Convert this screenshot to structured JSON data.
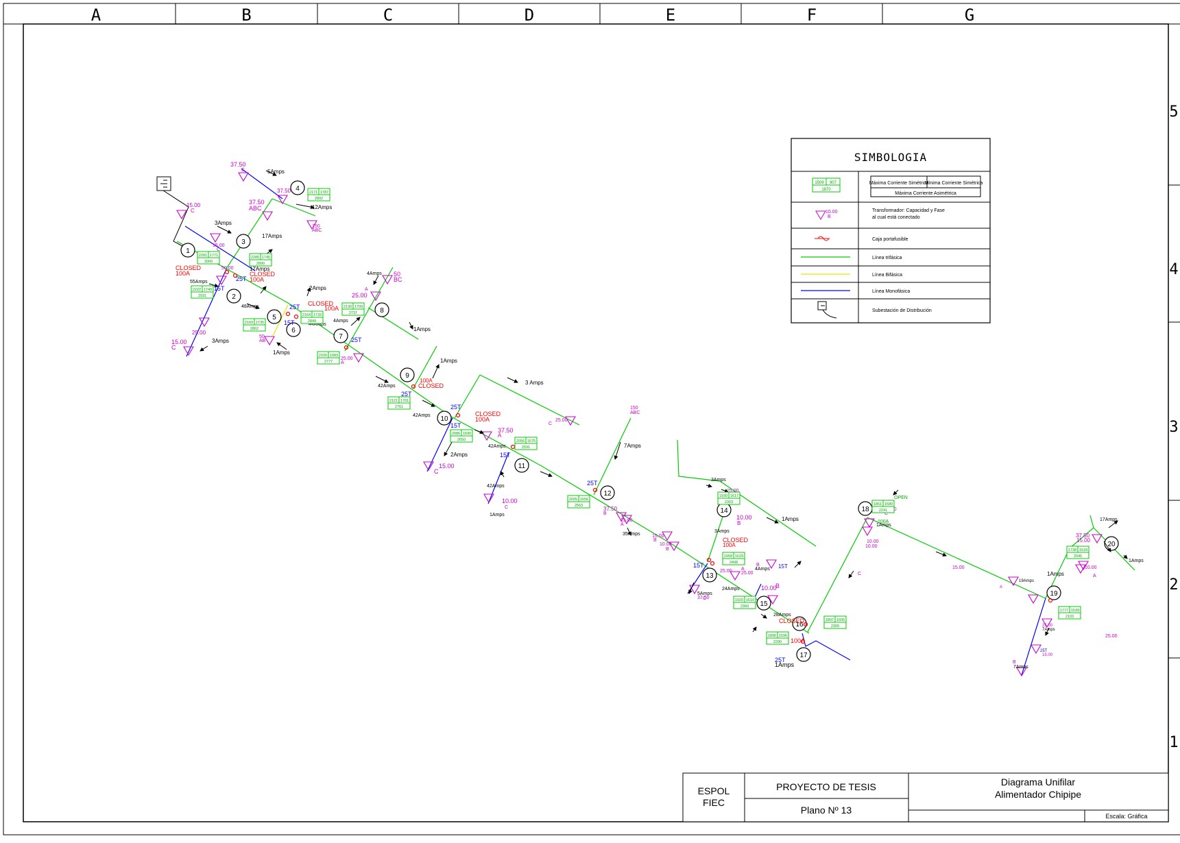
{
  "columns": [
    "A",
    "B",
    "C",
    "D",
    "E",
    "F",
    "G"
  ],
  "rows": [
    "5",
    "4",
    "3",
    "2",
    "1"
  ],
  "legend": {
    "title": "SIMBOLOGIA",
    "sample_box": {
      "a": "1509",
      "b": "907",
      "c": "1870"
    },
    "max_sym": "Máxima Corriente Simétrica",
    "min_sym": "Mínima Corriente Simétrica",
    "max_asym": "Máxima Corriente Asimétrica",
    "xfmr_cap": "10.00",
    "xfmr_phase": "B",
    "xfmr_desc1": "Transformador: Capacidad y Fase",
    "xfmr_desc2": "al cual está conectado",
    "fuse": "Caja portafusible",
    "three": "Línea trifásica",
    "two": "Línea Bifásica",
    "one": "Línea Monofásica",
    "sub": "Subestación de Distribución"
  },
  "colors": {
    "three": "#00cc00",
    "two": "#e6e600",
    "one": "#0000ff",
    "xfmr": "#cc00cc",
    "fuse": "#ff0000",
    "text": "#000000"
  },
  "nodes": [
    "1",
    "2",
    "3",
    "4",
    "5",
    "6",
    "7",
    "8",
    "9",
    "10",
    "11",
    "12",
    "13",
    "14",
    "15",
    "16",
    "17",
    "18",
    "19",
    "20"
  ],
  "labels": [
    {
      "t": "37.50",
      "c": "#cc00cc"
    },
    {
      "t": "C",
      "c": "#cc00cc"
    },
    {
      "t": "5Amps",
      "c": "#000"
    },
    {
      "t": "37.50",
      "c": "#cc00cc"
    },
    {
      "t": "12Amps",
      "c": "#000"
    },
    {
      "t": "37.50",
      "c": "#cc00cc"
    },
    {
      "t": "ABC",
      "c": "#cc00cc"
    },
    {
      "t": "150",
      "c": "#cc00cc"
    },
    {
      "t": "ABC",
      "c": "#cc00cc"
    },
    {
      "t": "17Amps",
      "c": "#000"
    },
    {
      "t": "15.00",
      "c": "#cc00cc"
    },
    {
      "t": "C",
      "c": "#cc00cc"
    },
    {
      "t": "3Amps",
      "c": "#000"
    },
    {
      "t": "15.00",
      "c": "#cc00cc"
    },
    {
      "t": "C",
      "c": "#cc00cc"
    },
    {
      "t": "CLOSED",
      "c": "#ff0000"
    },
    {
      "t": "100A",
      "c": "#ff0000"
    },
    {
      "t": "55Amps",
      "c": "#000"
    },
    {
      "t": "15T",
      "c": "#0000ff"
    },
    {
      "t": "25T",
      "c": "#0000ff"
    },
    {
      "t": "50.00",
      "c": "#cc00cc"
    },
    {
      "t": "17Amps",
      "c": "#000"
    },
    {
      "t": "CLOSED",
      "c": "#ff0000"
    },
    {
      "t": "100A",
      "c": "#ff0000"
    },
    {
      "t": "2Amps",
      "c": "#000"
    },
    {
      "t": "48Amps",
      "c": "#000"
    },
    {
      "t": "25T",
      "c": "#0000ff"
    },
    {
      "t": "15T",
      "c": "#0000ff"
    },
    {
      "t": "CLOSED",
      "c": "#ff0000"
    },
    {
      "t": "100A",
      "c": "#ff0000"
    },
    {
      "t": "50",
      "c": "#cc00cc"
    },
    {
      "t": "AB",
      "c": "#cc00cc"
    },
    {
      "t": "1Amps",
      "c": "#000"
    },
    {
      "t": "25.00",
      "c": "#cc00cc"
    },
    {
      "t": "15.00",
      "c": "#cc00cc"
    },
    {
      "t": "C",
      "c": "#cc00cc"
    },
    {
      "t": "3Amps",
      "c": "#000"
    },
    {
      "t": "4Amps",
      "c": "#000"
    },
    {
      "t": "50",
      "c": "#cc00cc"
    },
    {
      "t": "BC",
      "c": "#cc00cc"
    },
    {
      "t": "A",
      "c": "#cc00cc"
    },
    {
      "t": "25.00",
      "c": "#cc00cc"
    },
    {
      "t": "1Amps",
      "c": "#000"
    },
    {
      "t": "4Amps",
      "c": "#000"
    },
    {
      "t": "25T",
      "c": "#0000ff"
    },
    {
      "t": "44Amps",
      "c": "#000"
    },
    {
      "t": "25.00",
      "c": "#cc00cc"
    },
    {
      "t": "A",
      "c": "#cc00cc"
    },
    {
      "t": "1Amps",
      "c": "#000"
    },
    {
      "t": "100A",
      "c": "#ff0000"
    },
    {
      "t": "CLOSED",
      "c": "#ff0000"
    },
    {
      "t": "42Amps",
      "c": "#000"
    },
    {
      "t": "25T",
      "c": "#0000ff"
    },
    {
      "t": "3 Amps",
      "c": "#000"
    },
    {
      "t": "25.00",
      "c": "#cc00cc"
    },
    {
      "t": "C",
      "c": "#cc00cc"
    },
    {
      "t": "25T",
      "c": "#0000ff"
    },
    {
      "t": "CLOSED",
      "c": "#ff0000"
    },
    {
      "t": "100A",
      "c": "#ff0000"
    },
    {
      "t": "42Amps",
      "c": "#000"
    },
    {
      "t": "15T",
      "c": "#0000ff"
    },
    {
      "t": "37.50",
      "c": "#cc00cc"
    },
    {
      "t": "A",
      "c": "#cc00cc"
    },
    {
      "t": "42Amps",
      "c": "#000"
    },
    {
      "t": "15T",
      "c": "#0000ff"
    },
    {
      "t": "2Amps",
      "c": "#000"
    },
    {
      "t": "15.00",
      "c": "#cc00cc"
    },
    {
      "t": "C",
      "c": "#cc00cc"
    },
    {
      "t": "42Amps",
      "c": "#000"
    },
    {
      "t": "10.00",
      "c": "#cc00cc"
    },
    {
      "t": "C",
      "c": "#cc00cc"
    },
    {
      "t": "1Amps",
      "c": "#000"
    },
    {
      "t": "150",
      "c": "#cc00cc"
    },
    {
      "t": "ABC",
      "c": "#cc00cc"
    },
    {
      "t": "7Amps",
      "c": "#000"
    },
    {
      "t": "25T",
      "c": "#0000ff"
    },
    {
      "t": "37.50",
      "c": "#cc00cc"
    },
    {
      "t": "B",
      "c": "#cc00cc"
    },
    {
      "t": "15.00",
      "c": "#cc00cc"
    },
    {
      "t": "A",
      "c": "#cc00cc"
    },
    {
      "t": "35Amps",
      "c": "#000"
    },
    {
      "t": "15.00",
      "c": "#cc00cc"
    },
    {
      "t": "B",
      "c": "#cc00cc"
    },
    {
      "t": "10.00",
      "c": "#cc00cc"
    },
    {
      "t": "B",
      "c": "#cc00cc"
    },
    {
      "t": "3Amps",
      "c": "#000"
    },
    {
      "t": "25.00",
      "c": "#cc00cc"
    },
    {
      "t": "A",
      "c": "#cc00cc"
    },
    {
      "t": "1Amps",
      "c": "#000"
    },
    {
      "t": "10.00",
      "c": "#cc00cc"
    },
    {
      "t": "B",
      "c": "#cc00cc"
    },
    {
      "t": "3Amps",
      "c": "#000"
    },
    {
      "t": "CLOSED",
      "c": "#ff0000"
    },
    {
      "t": "100A",
      "c": "#ff0000"
    },
    {
      "t": "15T",
      "c": "#0000ff"
    },
    {
      "t": "25T",
      "c": "#0000ff"
    },
    {
      "t": "5Amps",
      "c": "#000"
    },
    {
      "t": "37.50",
      "c": "#cc00cc"
    },
    {
      "t": "C",
      "c": "#cc00cc"
    },
    {
      "t": "24Amps",
      "c": "#000"
    },
    {
      "t": "25.00",
      "c": "#cc00cc"
    },
    {
      "t": "A",
      "c": "#cc00cc"
    },
    {
      "t": "25.00",
      "c": "#cc00cc"
    },
    {
      "t": "B",
      "c": "#cc00cc"
    },
    {
      "t": "4Amps",
      "c": "#000"
    },
    {
      "t": "15T",
      "c": "#0000ff"
    },
    {
      "t": "10.00",
      "c": "#cc00cc"
    },
    {
      "t": "B",
      "c": "#cc00cc"
    },
    {
      "t": "28Amps",
      "c": "#000"
    },
    {
      "t": "CLOSED",
      "c": "#ff0000"
    },
    {
      "t": "100A",
      "c": "#ff0000"
    },
    {
      "t": "50T",
      "c": "#0000ff"
    },
    {
      "t": "25T",
      "c": "#0000ff"
    },
    {
      "t": "1Amps",
      "c": "#000"
    },
    {
      "t": "OPEN",
      "c": "#00aa00"
    },
    {
      "t": "100A",
      "c": "#00aa00"
    },
    {
      "t": "1Amps",
      "c": "#000"
    },
    {
      "t": "37.50",
      "c": "#cc00cc"
    },
    {
      "t": "C",
      "c": "#cc00cc"
    },
    {
      "t": "10.00",
      "c": "#cc00cc"
    },
    {
      "t": "10.00",
      "c": "#cc00cc"
    },
    {
      "t": "C",
      "c": "#cc00cc"
    },
    {
      "t": "15.00",
      "c": "#cc00cc"
    },
    {
      "t": "A",
      "c": "#cc00cc"
    },
    {
      "t": "19Amps",
      "c": "#000"
    },
    {
      "t": "17Amps",
      "c": "#000"
    },
    {
      "t": "37.50",
      "c": "#cc00cc"
    },
    {
      "t": "15.00",
      "c": "#cc00cc"
    },
    {
      "t": "1Amps",
      "c": "#000"
    },
    {
      "t": "10.00",
      "c": "#cc00cc"
    },
    {
      "t": "A",
      "c": "#cc00cc"
    },
    {
      "t": "1Amps",
      "c": "#000"
    },
    {
      "t": "25.00",
      "c": "#cc00cc"
    },
    {
      "t": "7Amps",
      "c": "#000"
    },
    {
      "t": "25.00",
      "c": "#cc00cc"
    },
    {
      "t": "25T",
      "c": "#0000ff"
    },
    {
      "t": "15.00",
      "c": "#cc00cc"
    },
    {
      "t": "B",
      "c": "#cc00cc"
    },
    {
      "t": "7Amps",
      "c": "#000"
    },
    {
      "t": "25.00",
      "c": "#cc00cc"
    },
    {
      "t": "B",
      "c": "#cc00cc"
    },
    {
      "t": "10.00",
      "c": "#cc00cc"
    },
    {
      "t": "B",
      "c": "#cc00cc"
    }
  ],
  "boxes": [
    {
      "a": "2171",
      "b": "1787",
      "c": "2802"
    },
    {
      "a": "2285",
      "b": "1745",
      "c": "2890"
    },
    {
      "a": "2281",
      "b": "1771",
      "c": "3060"
    },
    {
      "a": "2222",
      "b": "1749",
      "c": "2931"
    },
    {
      "a": "2164",
      "b": "1733",
      "c": "2849"
    },
    {
      "a": "2169",
      "b": "1735",
      "c": "2862"
    },
    {
      "a": "2130",
      "b": "1709",
      "c": "2737"
    },
    {
      "a": "2150",
      "b": "1983",
      "c": "2777"
    },
    {
      "a": "2121",
      "b": "1701",
      "c": "2761"
    },
    {
      "a": "2086",
      "b": "1690",
      "c": "2650"
    },
    {
      "a": "2056",
      "b": "1675",
      "c": "2591"
    },
    {
      "a": "2005",
      "b": "1656",
      "c": "2563"
    },
    {
      "a": "1930",
      "b": "1617",
      "c": "2363"
    },
    {
      "a": "1958",
      "b": "1629",
      "c": "2408"
    },
    {
      "a": "1920",
      "b": "1610",
      "c": "2360"
    },
    {
      "a": "1897",
      "b": "1605",
      "c": "2309"
    },
    {
      "a": "1896",
      "b": "1596",
      "c": "2290"
    },
    {
      "a": "1861",
      "b": "1580",
      "c": "2241"
    },
    {
      "a": "1777",
      "b": "1539",
      "c": "2103"
    },
    {
      "a": "1738",
      "b": "1518",
      "c": "2045"
    }
  ],
  "title_block": {
    "org1": "ESPOL",
    "org2": "FIEC",
    "project": "PROYECTO DE TESIS",
    "plan": "Plano Nº 13",
    "title1": "Diagrama Unifilar",
    "title2": "Alimentador Chipipe",
    "scale": "Escala: Gráfica"
  }
}
